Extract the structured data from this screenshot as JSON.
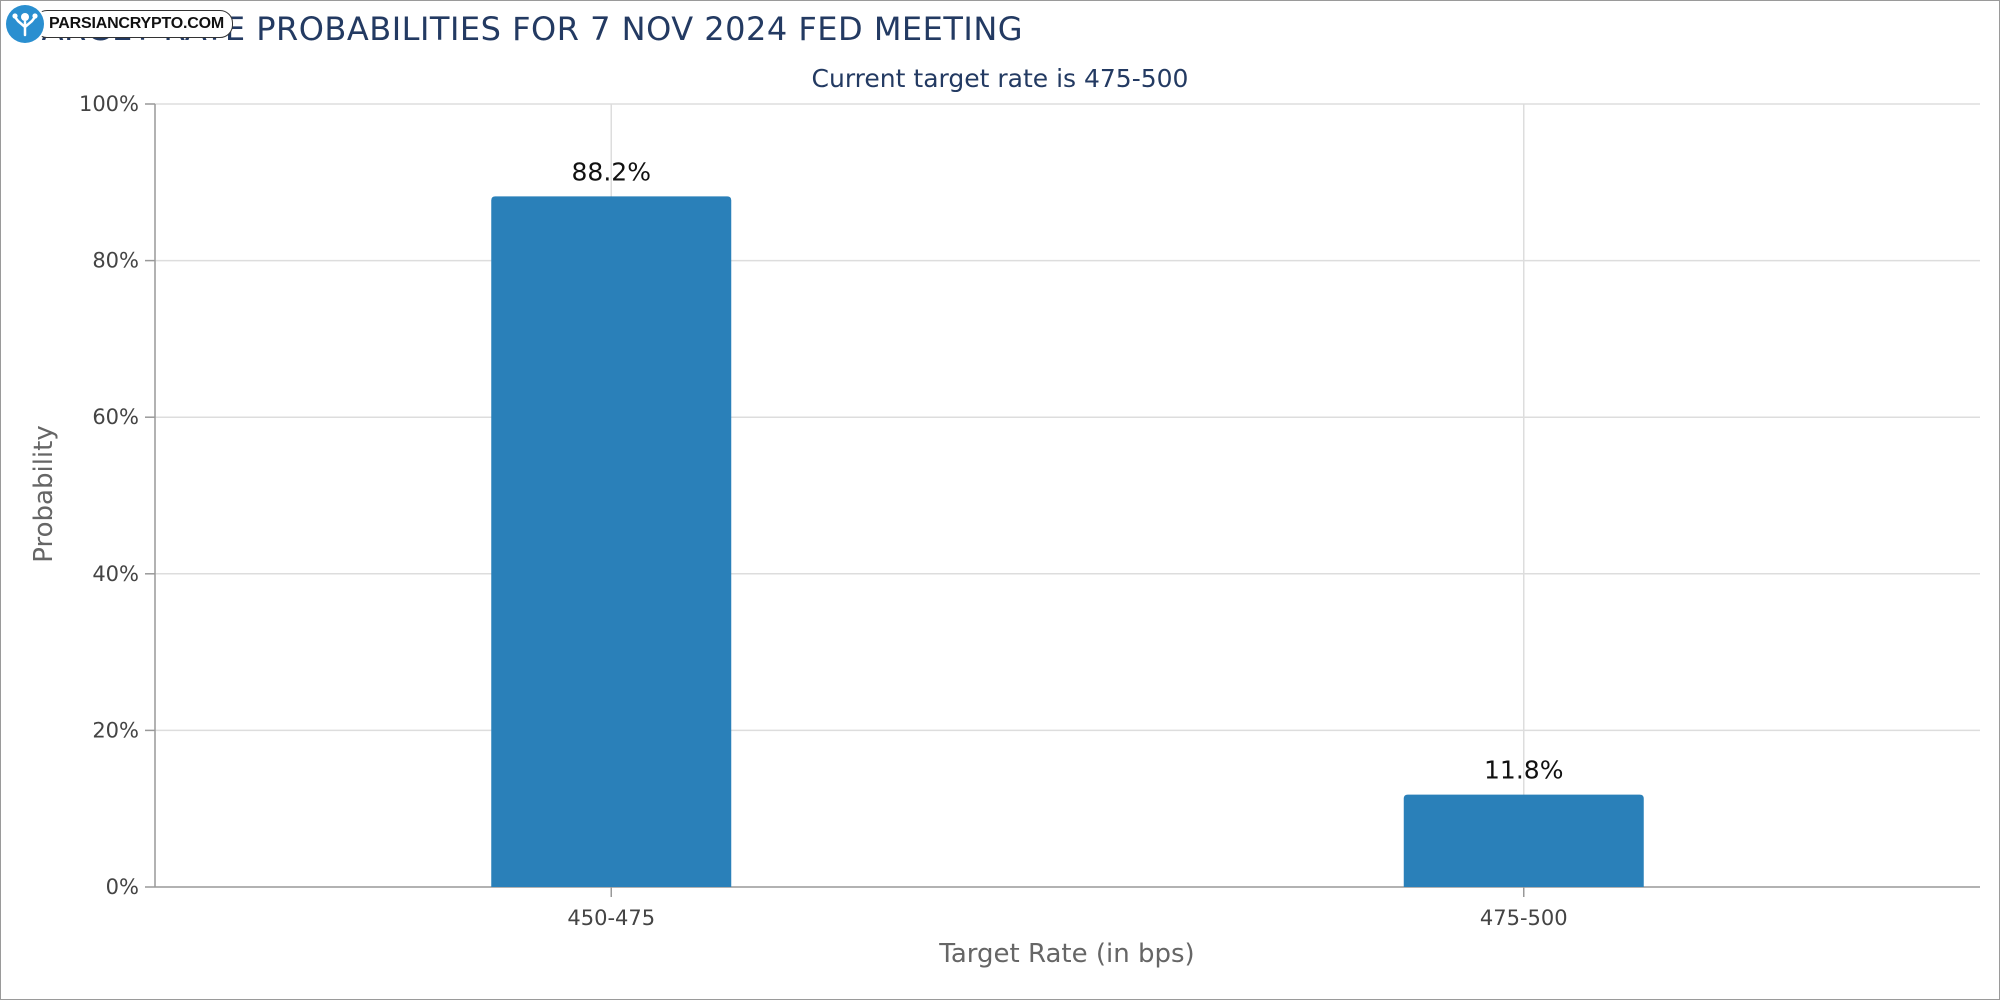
{
  "watermark": {
    "text": "PARSIANCRYPTO.COM",
    "logo_icon": "tree-person-icon"
  },
  "chart_data": {
    "type": "bar",
    "title": "TARGET RATE PROBABILITIES FOR 7 NOV 2024 FED MEETING",
    "subtitle": "Current target rate is 475-500",
    "xlabel": "Target Rate (in bps)",
    "ylabel": "Probability",
    "categories": [
      "450-475",
      "475-500"
    ],
    "values": [
      88.2,
      11.8
    ],
    "data_labels": [
      "88.2%",
      "11.8%"
    ],
    "ylim": [
      0,
      100
    ],
    "yticks": [
      {
        "value": 0,
        "label": "0%"
      },
      {
        "value": 20,
        "label": "20%"
      },
      {
        "value": 40,
        "label": "40%"
      },
      {
        "value": 60,
        "label": "60%"
      },
      {
        "value": 80,
        "label": "80%"
      },
      {
        "value": 100,
        "label": "100%"
      }
    ],
    "grid": true,
    "bar_color": "#2a80b9",
    "grid_color": "#dddddd",
    "axis_color": "#999999"
  }
}
